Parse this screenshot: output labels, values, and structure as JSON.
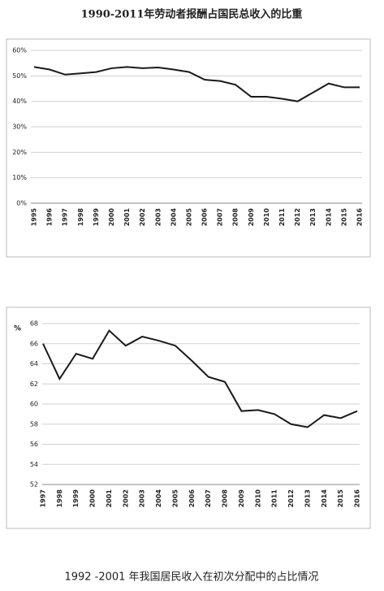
{
  "chart_data": [
    {
      "type": "line",
      "title": "1990-2011年劳动者报酬占国民总收入的比重",
      "categories": [
        "1995",
        "1996",
        "1997",
        "1998",
        "1999",
        "2000",
        "2001",
        "2002",
        "2003",
        "2004",
        "2005",
        "2006",
        "2007",
        "2008",
        "2009",
        "2010",
        "2011",
        "2012",
        "2013",
        "2014",
        "2015",
        "2016"
      ],
      "values": [
        53.5,
        52.5,
        50.5,
        51,
        51.5,
        53,
        53.5,
        53,
        53.3,
        52.5,
        51.5,
        48.5,
        48,
        46.5,
        41.8,
        41.8,
        41,
        40,
        43.5,
        47,
        45.5,
        45.5
      ],
      "color": "#1a1a1a",
      "ylim": [
        0,
        60
      ],
      "yticks": [
        {
          "value": 0,
          "label": "0%"
        },
        {
          "value": 10,
          "label": "10%"
        },
        {
          "value": 20,
          "label": "20%"
        },
        {
          "value": 30,
          "label": "30%"
        },
        {
          "value": 40,
          "label": "40%"
        },
        {
          "value": 50,
          "label": "50%"
        },
        {
          "value": 60,
          "label": "60%"
        }
      ],
      "grid": true
    },
    {
      "type": "line",
      "title": "1992 -2001 年我国居民收入在初次分配中的占比情况",
      "ylabel": "%",
      "categories": [
        "1997",
        "1998",
        "1999",
        "2000",
        "2001",
        "2002",
        "2003",
        "2004",
        "2005",
        "2006",
        "2007",
        "2008",
        "2009",
        "2010",
        "2011",
        "2012",
        "2013",
        "2014",
        "2015",
        "2016"
      ],
      "values": [
        66,
        62.5,
        65,
        64.5,
        67.3,
        65.8,
        66.7,
        66.3,
        65.8,
        64.3,
        62.7,
        62.2,
        59.3,
        59.4,
        59,
        58,
        57.7,
        58.9,
        58.6,
        59.3
      ],
      "color": "#1a1a1a",
      "ylim": [
        52,
        68
      ],
      "yticks": [
        52,
        54,
        56,
        58,
        60,
        62,
        64,
        66,
        68
      ],
      "grid": true
    }
  ]
}
